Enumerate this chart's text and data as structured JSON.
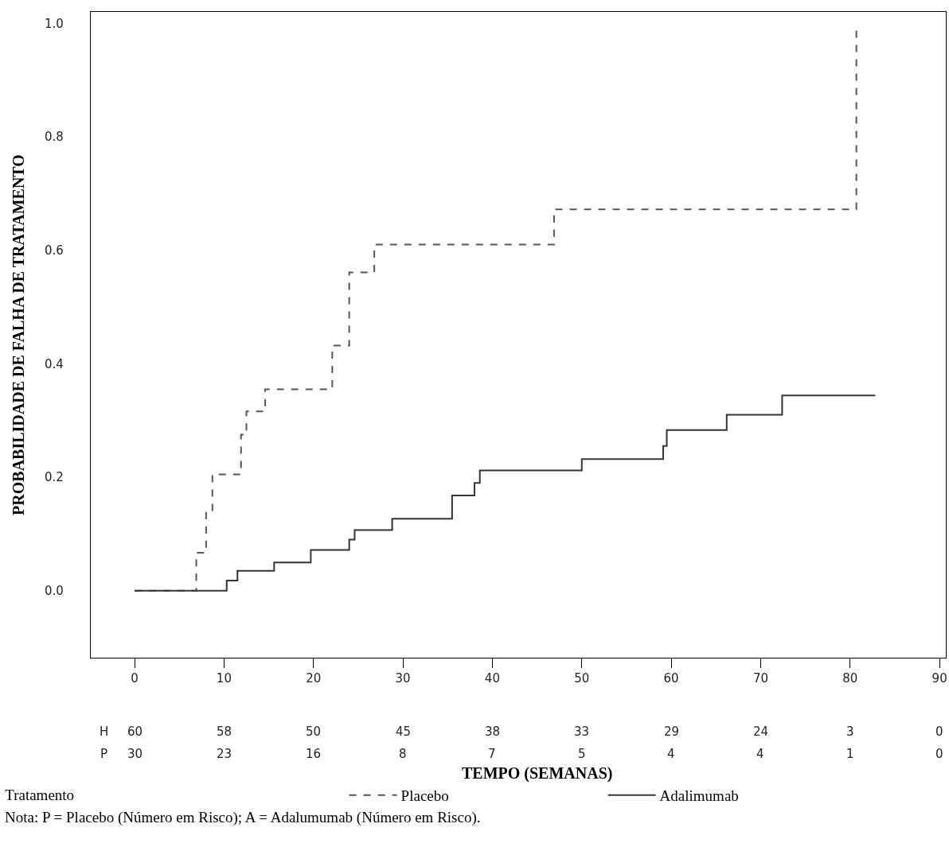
{
  "chart_data": {
    "type": "step",
    "xlabel": "TEMPO (SEMANAS)",
    "ylabel": "PROBABILIDADE DE FALHA DE TRATAMENTO",
    "legend_title": "Tratamento",
    "legend": "bottom",
    "series": [
      {
        "name": "Placebo",
        "color": "#555555",
        "line_style": "dashed",
        "x": [
          0,
          6.9,
          8.0,
          8.7,
          11.9,
          12.5,
          14.6,
          22.1,
          24.0,
          26.8,
          46.9,
          80.7
        ],
        "values": [
          0,
          0.067,
          0.14,
          0.205,
          0.275,
          0.316,
          0.355,
          0.432,
          0.561,
          0.61,
          0.672,
          0.99
        ]
      },
      {
        "name": "Adalimumab",
        "color": "#333333",
        "line_style": "solid",
        "x": [
          0,
          10.3,
          11.5,
          15.6,
          19.7,
          24.0,
          24.6,
          28.8,
          35.5,
          38.0,
          38.6,
          50.0,
          59.1,
          59.5,
          66.2,
          72.4,
          82.8
        ],
        "values": [
          0,
          0.018,
          0.035,
          0.05,
          0.072,
          0.09,
          0.107,
          0.127,
          0.168,
          0.19,
          0.212,
          0.232,
          0.255,
          0.283,
          0.31,
          0.344,
          0.344
        ]
      }
    ],
    "xlim": [
      -4.9,
      90.7
    ],
    "xticks": [
      0,
      10,
      20,
      30,
      40,
      50,
      60,
      70,
      80,
      90
    ],
    "ylim": [
      -0.118,
      1.02
    ],
    "yticks": [
      {
        "value": 0,
        "label": "0.0"
      },
      {
        "value": 0.2,
        "label": "0.2"
      },
      {
        "value": 0.4,
        "label": "0.4"
      },
      {
        "value": 0.6,
        "label": "0.6"
      },
      {
        "value": 0.8,
        "label": "0.8"
      },
      {
        "value": 1,
        "label": "1.0"
      }
    ],
    "grid": false,
    "marker": "none",
    "annotations": [
      "H",
      "60",
      "58",
      "50",
      "45",
      "38",
      "33",
      "29",
      "24",
      "3",
      "0",
      "P",
      "30",
      "23",
      "16",
      "8",
      "7",
      "5",
      "4",
      "4",
      "1",
      "0",
      "Nota: P = Placebo (Número em Risco); A = Adalumumab (Número em Risco)."
    ]
  }
}
